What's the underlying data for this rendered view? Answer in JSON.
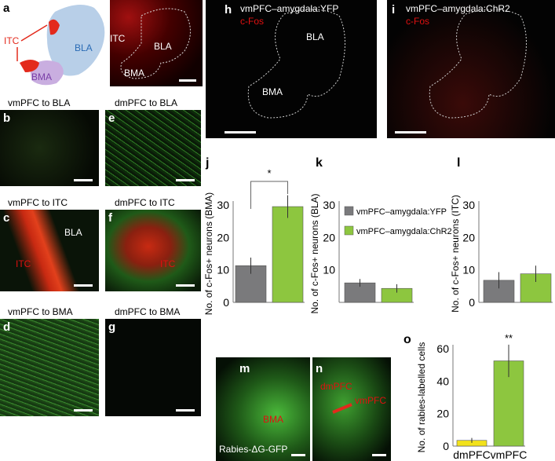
{
  "panels": {
    "a": {
      "label": "a",
      "regions": [
        "ITC",
        "BLA",
        "BMA"
      ]
    },
    "b": {
      "label": "b",
      "caption": "vmPFC to BLA"
    },
    "c": {
      "label": "c",
      "caption": "vmPFC to ITC",
      "regions": [
        "BLA",
        "ITC"
      ]
    },
    "d": {
      "label": "d",
      "caption": "vmPFC to BMA"
    },
    "e": {
      "label": "e",
      "caption": "dmPFC to BLA"
    },
    "f": {
      "label": "f",
      "caption": "dmPFC to ITC",
      "region": "ITC"
    },
    "g": {
      "label": "g",
      "caption": "dmPFC to BMA"
    },
    "h": {
      "label": "h",
      "title": "vmPFC–amygdala:YFP",
      "stain": "c-Fos",
      "regions": [
        "BLA",
        "BMA"
      ]
    },
    "i": {
      "label": "i",
      "title": "vmPFC–amygdala:ChR2",
      "stain": "c-Fos"
    },
    "m": {
      "label": "m",
      "region": "BMA",
      "caption": "Rabies-ΔG-GFP"
    },
    "n": {
      "label": "n",
      "regions": [
        "dmPFC",
        "vmPFC"
      ]
    }
  },
  "colors": {
    "yfp": "#7a7a7c",
    "chr2": "#8dc63f",
    "dmpfc": "#f2e21b",
    "green_signal": "#3fbf3f",
    "red_signal": "#e32a1c"
  },
  "legend": [
    "vmPFC–amygdala:YFP",
    "vmPFC–amygdala:ChR2"
  ],
  "chart_data": [
    {
      "panel": "j",
      "type": "bar",
      "ylabel": "No. of c-Fos+ neurons (BMA)",
      "ylim": [
        0,
        30
      ],
      "yticks": [
        0,
        10,
        20,
        30
      ],
      "series": [
        {
          "name": "vmPFC–amygdala:YFP",
          "value": 11.3,
          "error": 2.5
        },
        {
          "name": "vmPFC–amygdala:ChR2",
          "value": 29.5,
          "error": 3.5
        }
      ],
      "annotation": "*"
    },
    {
      "panel": "k",
      "type": "bar",
      "ylabel": "No. of c-Fos+ neurons (BLA)",
      "ylim": [
        0,
        30
      ],
      "yticks": [
        10,
        20,
        30
      ],
      "series": [
        {
          "name": "vmPFC–amygdala:YFP",
          "value": 6.0,
          "error": 1.2
        },
        {
          "name": "vmPFC–amygdala:ChR2",
          "value": 4.3,
          "error": 1.3
        }
      ]
    },
    {
      "panel": "l",
      "type": "bar",
      "ylabel": "No. of c-Fos+ neurons (ITC)",
      "ylim": [
        0,
        30
      ],
      "yticks": [
        0,
        10,
        20,
        30
      ],
      "series": [
        {
          "name": "vmPFC–amygdala:YFP",
          "value": 6.8,
          "error": 2.5
        },
        {
          "name": "vmPFC–amygdala:ChR2",
          "value": 8.8,
          "error": 2.5
        }
      ]
    },
    {
      "panel": "o",
      "type": "bar",
      "ylabel": "No. of rabies-labelled cells",
      "ylim": [
        0,
        60
      ],
      "yticks": [
        0,
        20,
        40,
        60
      ],
      "categories": [
        "dmPFC",
        "vmPFC"
      ],
      "values": [
        3.5,
        52.5
      ],
      "errors": [
        1.5,
        10
      ],
      "annotation": "**"
    }
  ]
}
